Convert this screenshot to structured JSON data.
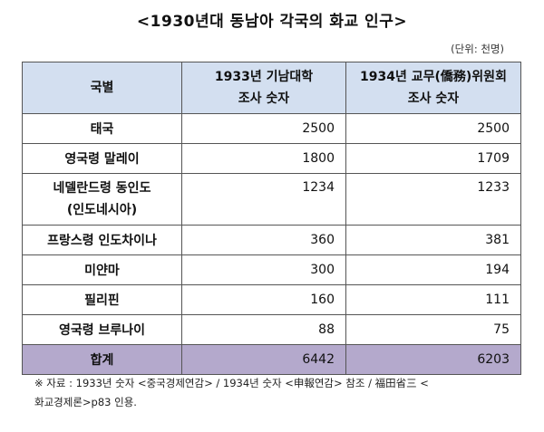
{
  "title": "<1930년대 동남아 각국의 화교 인구>",
  "unit": "(단위: 천명)",
  "table": {
    "col1_header": "국별",
    "col2_header_line1": "1933년 기남대학",
    "col2_header_line2": "조사 숫자",
    "col3_header_line1": "1934년 교무(僑務)위원회",
    "col3_header_line2": "조사 숫자",
    "rows": [
      {
        "country": "태국",
        "v1933": "2500",
        "v1934": "2500"
      },
      {
        "country": "영국령 말레이",
        "v1933": "1800",
        "v1934": "1709"
      },
      {
        "country_line1": "네델란드령 동인도",
        "country_line2": "(인도네시아)",
        "v1933": "1234",
        "v1934": "1233"
      },
      {
        "country": "프랑스령 인도차이나",
        "v1933": "360",
        "v1934": "381"
      },
      {
        "country": "미얀마",
        "v1933": "300",
        "v1934": "194"
      },
      {
        "country": "필리핀",
        "v1933": "160",
        "v1934": "111"
      },
      {
        "country": "영국령 브루나이",
        "v1933": "88",
        "v1934": "75"
      }
    ],
    "total": {
      "label": "합계",
      "v1933": "6442",
      "v1934": "6203"
    }
  },
  "note_line1": "※ 자료 : 1933년 숫자 <중국경제연감> / 1934년 숫자 <申報연감> 참조 / 福田省三 <",
  "note_line2": "화교경제론>p83 인용.",
  "colors": {
    "header_bg": "#d3dff0",
    "total_bg": "#b4a9cc"
  }
}
